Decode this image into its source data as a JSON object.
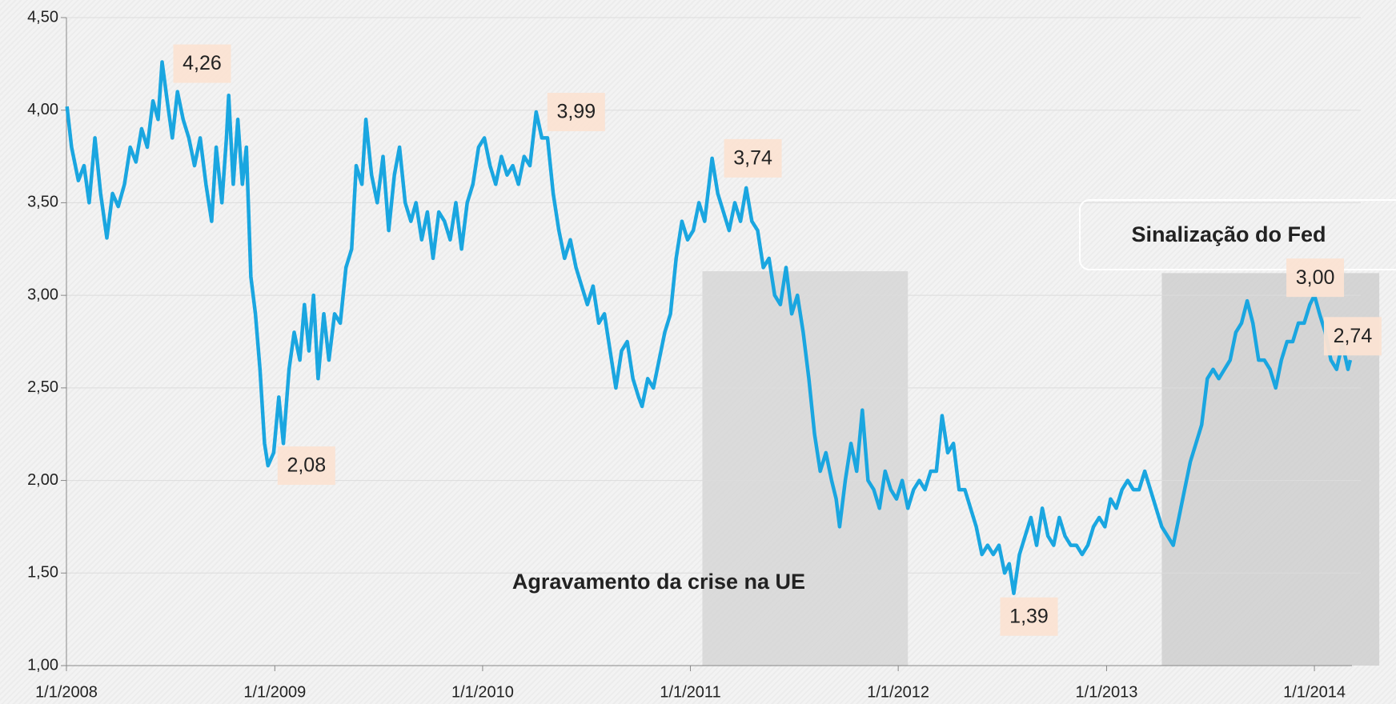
{
  "chart_data": {
    "type": "line",
    "x": [
      "2008-01-02",
      "2008-01-10",
      "2008-01-22",
      "2008-02-01",
      "2008-02-10",
      "2008-02-20",
      "2008-03-01",
      "2008-03-12",
      "2008-03-22",
      "2008-04-01",
      "2008-04-12",
      "2008-04-22",
      "2008-05-02",
      "2008-05-12",
      "2008-05-22",
      "2008-06-01",
      "2008-06-10",
      "2008-06-17",
      "2008-06-26",
      "2008-07-05",
      "2008-07-14",
      "2008-07-24",
      "2008-08-03",
      "2008-08-13",
      "2008-08-23",
      "2008-09-02",
      "2008-09-12",
      "2008-09-20",
      "2008-09-30",
      "2008-10-08",
      "2008-10-12",
      "2008-10-20",
      "2008-10-28",
      "2008-11-05",
      "2008-11-12",
      "2008-11-20",
      "2008-11-28",
      "2008-12-06",
      "2008-12-14",
      "2008-12-20",
      "2008-12-30",
      "2009-01-08",
      "2009-01-16",
      "2009-01-26",
      "2009-02-04",
      "2009-02-14",
      "2009-02-22",
      "2009-03-02",
      "2009-03-10",
      "2009-03-18",
      "2009-03-28",
      "2009-04-06",
      "2009-04-16",
      "2009-04-26",
      "2009-05-06",
      "2009-05-16",
      "2009-05-24",
      "2009-06-03",
      "2009-06-10",
      "2009-06-20",
      "2009-06-30",
      "2009-07-10",
      "2009-07-20",
      "2009-07-30",
      "2009-08-08",
      "2009-08-18",
      "2009-08-28",
      "2009-09-06",
      "2009-09-16",
      "2009-09-26",
      "2009-10-06",
      "2009-10-16",
      "2009-10-26",
      "2009-11-05",
      "2009-11-15",
      "2009-11-25",
      "2009-12-05",
      "2009-12-15",
      "2009-12-25",
      "2010-01-04",
      "2010-01-14",
      "2010-01-24",
      "2010-02-03",
      "2010-02-13",
      "2010-02-23",
      "2010-03-05",
      "2010-03-15",
      "2010-03-25",
      "2010-04-05",
      "2010-04-15",
      "2010-04-25",
      "2010-05-05",
      "2010-05-15",
      "2010-05-25",
      "2010-06-04",
      "2010-06-14",
      "2010-06-24",
      "2010-07-04",
      "2010-07-14",
      "2010-07-24",
      "2010-08-03",
      "2010-08-13",
      "2010-08-23",
      "2010-09-02",
      "2010-09-12",
      "2010-09-22",
      "2010-10-02",
      "2010-10-08",
      "2010-10-18",
      "2010-10-28",
      "2010-11-07",
      "2010-11-17",
      "2010-11-27",
      "2010-12-07",
      "2010-12-17",
      "2010-12-27",
      "2011-01-06",
      "2011-01-16",
      "2011-01-26",
      "2011-02-08",
      "2011-02-18",
      "2011-02-28",
      "2011-03-10",
      "2011-03-20",
      "2011-03-30",
      "2011-04-09",
      "2011-04-19",
      "2011-04-29",
      "2011-05-09",
      "2011-05-19",
      "2011-05-29",
      "2011-06-08",
      "2011-06-18",
      "2011-06-28",
      "2011-07-08",
      "2011-07-18",
      "2011-07-28",
      "2011-08-07",
      "2011-08-17",
      "2011-08-27",
      "2011-09-06",
      "2011-09-14",
      "2011-09-20",
      "2011-09-30",
      "2011-10-10",
      "2011-10-20",
      "2011-10-30",
      "2011-11-09",
      "2011-11-19",
      "2011-11-29",
      "2011-12-09",
      "2011-12-19",
      "2011-12-29",
      "2012-01-08",
      "2012-01-18",
      "2012-01-28",
      "2012-02-07",
      "2012-02-17",
      "2012-02-27",
      "2012-03-08",
      "2012-03-18",
      "2012-03-28",
      "2012-04-07",
      "2012-04-17",
      "2012-04-27",
      "2012-05-07",
      "2012-05-17",
      "2012-05-27",
      "2012-06-06",
      "2012-06-16",
      "2012-06-26",
      "2012-07-06",
      "2012-07-14",
      "2012-07-22",
      "2012-08-01",
      "2012-08-11",
      "2012-08-21",
      "2012-08-31",
      "2012-09-10",
      "2012-09-20",
      "2012-09-30",
      "2012-10-10",
      "2012-10-20",
      "2012-10-30",
      "2012-11-09",
      "2012-11-19",
      "2012-11-29",
      "2012-12-09",
      "2012-12-19",
      "2012-12-29",
      "2013-01-08",
      "2013-01-18",
      "2013-01-28",
      "2013-02-07",
      "2013-02-17",
      "2013-02-27",
      "2013-03-09",
      "2013-03-19",
      "2013-03-29",
      "2013-04-08",
      "2013-04-18",
      "2013-04-28",
      "2013-05-08",
      "2013-05-18",
      "2013-05-28",
      "2013-06-07",
      "2013-06-17",
      "2013-06-27",
      "2013-07-07",
      "2013-07-17",
      "2013-07-27",
      "2013-08-06",
      "2013-08-16",
      "2013-08-26",
      "2013-09-05",
      "2013-09-15",
      "2013-09-25",
      "2013-10-05",
      "2013-10-15",
      "2013-10-25",
      "2013-11-04",
      "2013-11-14",
      "2013-11-24",
      "2013-12-04",
      "2013-12-14",
      "2013-12-24",
      "2014-01-01",
      "2014-01-10",
      "2014-01-20",
      "2014-01-30",
      "2014-02-09",
      "2014-02-19",
      "2014-03-01",
      "2014-03-05"
    ],
    "values": [
      4.02,
      3.8,
      3.62,
      3.7,
      3.5,
      3.85,
      3.55,
      3.31,
      3.55,
      3.48,
      3.6,
      3.8,
      3.72,
      3.9,
      3.8,
      4.05,
      3.95,
      4.26,
      4.05,
      3.85,
      4.1,
      3.95,
      3.85,
      3.7,
      3.85,
      3.6,
      3.4,
      3.8,
      3.5,
      3.85,
      4.08,
      3.6,
      3.95,
      3.6,
      3.8,
      3.1,
      2.9,
      2.6,
      2.2,
      2.08,
      2.15,
      2.45,
      2.2,
      2.6,
      2.8,
      2.65,
      2.95,
      2.7,
      3.0,
      2.55,
      2.9,
      2.65,
      2.9,
      2.85,
      3.15,
      3.25,
      3.7,
      3.6,
      3.95,
      3.65,
      3.5,
      3.75,
      3.35,
      3.65,
      3.8,
      3.5,
      3.4,
      3.5,
      3.3,
      3.45,
      3.2,
      3.45,
      3.4,
      3.3,
      3.5,
      3.25,
      3.5,
      3.6,
      3.8,
      3.85,
      3.7,
      3.6,
      3.75,
      3.65,
      3.7,
      3.6,
      3.75,
      3.7,
      3.99,
      3.85,
      3.85,
      3.55,
      3.35,
      3.2,
      3.3,
      3.15,
      3.05,
      2.95,
      3.05,
      2.85,
      2.9,
      2.7,
      2.5,
      2.7,
      2.75,
      2.55,
      2.45,
      2.4,
      2.55,
      2.5,
      2.65,
      2.8,
      2.9,
      3.2,
      3.4,
      3.3,
      3.35,
      3.5,
      3.4,
      3.74,
      3.55,
      3.45,
      3.35,
      3.5,
      3.4,
      3.58,
      3.4,
      3.35,
      3.15,
      3.2,
      3.0,
      2.95,
      3.15,
      2.9,
      3.0,
      2.8,
      2.55,
      2.25,
      2.05,
      2.15,
      2.0,
      1.9,
      1.75,
      2.0,
      2.2,
      2.05,
      2.38,
      2.0,
      1.95,
      1.85,
      2.05,
      1.95,
      1.9,
      2.0,
      1.85,
      1.95,
      2.0,
      1.95,
      2.05,
      2.05,
      2.35,
      2.15,
      2.2,
      1.95,
      1.95,
      1.85,
      1.75,
      1.6,
      1.65,
      1.6,
      1.65,
      1.5,
      1.55,
      1.39,
      1.6,
      1.7,
      1.8,
      1.65,
      1.85,
      1.7,
      1.65,
      1.8,
      1.7,
      1.65,
      1.65,
      1.6,
      1.65,
      1.75,
      1.8,
      1.75,
      1.9,
      1.85,
      1.95,
      2.0,
      1.95,
      1.95,
      2.05,
      1.95,
      1.85,
      1.75,
      1.7,
      1.65,
      1.8,
      1.95,
      2.1,
      2.2,
      2.3,
      2.55,
      2.6,
      2.55,
      2.6,
      2.65,
      2.8,
      2.85,
      2.97,
      2.85,
      2.65,
      2.65,
      2.6,
      2.5,
      2.65,
      2.75,
      2.75,
      2.85,
      2.85,
      2.95,
      3.0,
      2.9,
      2.8,
      2.65,
      2.6,
      2.74,
      2.6,
      2.65
    ],
    "color": "#1aa6e0",
    "xlim": [
      "2008-01-01",
      "2014-03-08"
    ],
    "xticks": [
      {
        "value": "2008-01-01",
        "label": "1/1/2008"
      },
      {
        "value": "2009-01-01",
        "label": "1/1/2009"
      },
      {
        "value": "2010-01-01",
        "label": "1/1/2010"
      },
      {
        "value": "2011-01-01",
        "label": "1/1/2011"
      },
      {
        "value": "2012-01-01",
        "label": "1/1/2012"
      },
      {
        "value": "2013-01-01",
        "label": "1/1/2013"
      },
      {
        "value": "2014-01-01",
        "label": "1/1/2014"
      }
    ],
    "ylim": [
      1.0,
      4.5
    ],
    "yticks": [
      {
        "value": 1.0,
        "label": "1,00"
      },
      {
        "value": 1.5,
        "label": "1,50"
      },
      {
        "value": 2.0,
        "label": "2,00"
      },
      {
        "value": 2.5,
        "label": "2,50"
      },
      {
        "value": 3.0,
        "label": "3,00"
      },
      {
        "value": 3.5,
        "label": "3,50"
      },
      {
        "value": 4.0,
        "label": "4,00"
      },
      {
        "value": 4.5,
        "label": "4,50"
      }
    ],
    "grid": true,
    "annotations": [
      {
        "x": "2008-06-17",
        "value": 4.26,
        "label": "4,26"
      },
      {
        "x": "2008-12-20",
        "value": 2.08,
        "label": "2,08"
      },
      {
        "x": "2010-04-05",
        "value": 3.99,
        "label": "3,99"
      },
      {
        "x": "2011-02-08",
        "value": 3.74,
        "label": "3,74"
      },
      {
        "x": "2012-07-22",
        "value": 1.39,
        "label": "1,39"
      },
      {
        "x": "2014-01-01",
        "value": 3.0,
        "label": "3,00"
      },
      {
        "x": "2014-02-19",
        "value": 2.74,
        "label": "2,74"
      }
    ],
    "shaded_regions": [
      {
        "start": "2011-01-22",
        "end": "2012-01-18",
        "top": 3.13,
        "label": "Agravamento da crise na UE"
      },
      {
        "start": "2013-04-08",
        "end": "2014-04-25",
        "top": 3.12,
        "label": "Sinalização do Fed"
      }
    ]
  }
}
